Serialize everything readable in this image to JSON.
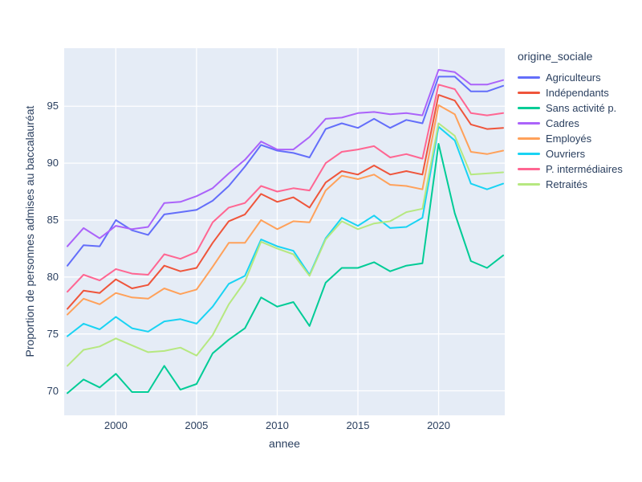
{
  "colors": {
    "plot_bg": "#E5ECF6",
    "grid": "#FFFFFF",
    "text": "#2A3F5F",
    "page_bg": "#FFFFFF"
  },
  "chart_data": {
    "type": "line",
    "title": "",
    "xlabel": "annee",
    "ylabel": "Proportion de personnes admises au baccalauréat",
    "legend_title": "origine_sociale",
    "legend_position": "right",
    "grid": true,
    "x_range": [
      1996.8,
      2024.1
    ],
    "y_range": [
      67.85,
      100.1
    ],
    "xticks": [
      2000,
      2005,
      2010,
      2015,
      2020
    ],
    "yticks": [
      70,
      75,
      80,
      85,
      90,
      95
    ],
    "x": [
      1997,
      1998,
      1999,
      2000,
      2001,
      2002,
      2003,
      2004,
      2005,
      2006,
      2007,
      2008,
      2009,
      2010,
      2011,
      2012,
      2013,
      2014,
      2015,
      2016,
      2017,
      2018,
      2019,
      2020,
      2021,
      2022,
      2023,
      2024
    ],
    "series": [
      {
        "name": "Agriculteurs",
        "color": "#636EFA",
        "values": [
          81.0,
          82.8,
          82.7,
          85.0,
          84.1,
          83.7,
          85.5,
          85.7,
          85.9,
          86.7,
          88.0,
          89.7,
          91.6,
          91.1,
          90.9,
          90.5,
          93.0,
          93.5,
          93.1,
          93.9,
          93.1,
          93.8,
          93.5,
          97.6,
          97.6,
          96.3,
          96.3,
          96.8
        ]
      },
      {
        "name": "Indépendants",
        "color": "#EF553B",
        "values": [
          77.2,
          78.8,
          78.6,
          79.8,
          79.0,
          79.3,
          81.0,
          80.5,
          80.8,
          83.0,
          84.9,
          85.5,
          87.3,
          86.6,
          87.0,
          86.1,
          88.3,
          89.3,
          89.0,
          89.8,
          89.0,
          89.3,
          89.0,
          96.0,
          95.5,
          93.4,
          93.0,
          93.1
        ]
      },
      {
        "name": "Sans activité p.",
        "color": "#00CC96",
        "values": [
          69.8,
          71.0,
          70.3,
          71.5,
          69.9,
          69.9,
          72.2,
          70.1,
          70.6,
          73.3,
          74.5,
          75.5,
          78.2,
          77.4,
          77.8,
          75.7,
          79.5,
          80.8,
          80.8,
          81.3,
          80.5,
          81.0,
          81.2,
          91.7,
          85.6,
          81.4,
          80.8,
          81.9
        ]
      },
      {
        "name": "Cadres",
        "color": "#AB63FA",
        "values": [
          82.7,
          84.3,
          83.4,
          84.5,
          84.2,
          84.4,
          86.5,
          86.6,
          87.1,
          87.8,
          89.1,
          90.3,
          91.9,
          91.2,
          91.2,
          92.3,
          93.9,
          94.0,
          94.4,
          94.5,
          94.3,
          94.4,
          94.2,
          98.2,
          98.0,
          96.9,
          96.9,
          97.3
        ]
      },
      {
        "name": "Employés",
        "color": "#FFA15A",
        "values": [
          76.7,
          78.1,
          77.6,
          78.6,
          78.2,
          78.1,
          79.0,
          78.5,
          78.9,
          80.9,
          83.0,
          83.0,
          85.0,
          84.2,
          84.9,
          84.8,
          87.6,
          88.9,
          88.6,
          89.0,
          88.1,
          88.0,
          87.7,
          95.1,
          94.3,
          91.0,
          90.8,
          91.1
        ]
      },
      {
        "name": "Ouvriers",
        "color": "#19D3F3",
        "values": [
          74.8,
          75.9,
          75.4,
          76.5,
          75.5,
          75.2,
          76.1,
          76.3,
          75.9,
          77.4,
          79.4,
          80.1,
          83.3,
          82.7,
          82.3,
          80.2,
          83.4,
          85.2,
          84.5,
          85.4,
          84.3,
          84.4,
          85.2,
          93.2,
          92.0,
          88.2,
          87.7,
          88.2
        ]
      },
      {
        "name": "P. intermédiaires",
        "color": "#FF6692",
        "values": [
          78.7,
          80.2,
          79.7,
          80.7,
          80.3,
          80.2,
          82.0,
          81.6,
          82.2,
          84.8,
          86.1,
          86.5,
          88.0,
          87.5,
          87.8,
          87.6,
          90.0,
          91.0,
          91.2,
          91.5,
          90.5,
          90.8,
          90.4,
          96.9,
          96.5,
          94.4,
          94.2,
          94.4
        ]
      },
      {
        "name": "Retraités",
        "color": "#B6E880",
        "values": [
          72.2,
          73.6,
          73.9,
          74.6,
          74.0,
          73.4,
          73.5,
          73.8,
          73.1,
          74.9,
          77.6,
          79.6,
          83.1,
          82.5,
          82.0,
          80.1,
          83.3,
          84.9,
          84.2,
          84.7,
          84.9,
          85.7,
          86.0,
          93.5,
          92.4,
          89.0,
          89.1,
          89.2
        ]
      }
    ]
  }
}
